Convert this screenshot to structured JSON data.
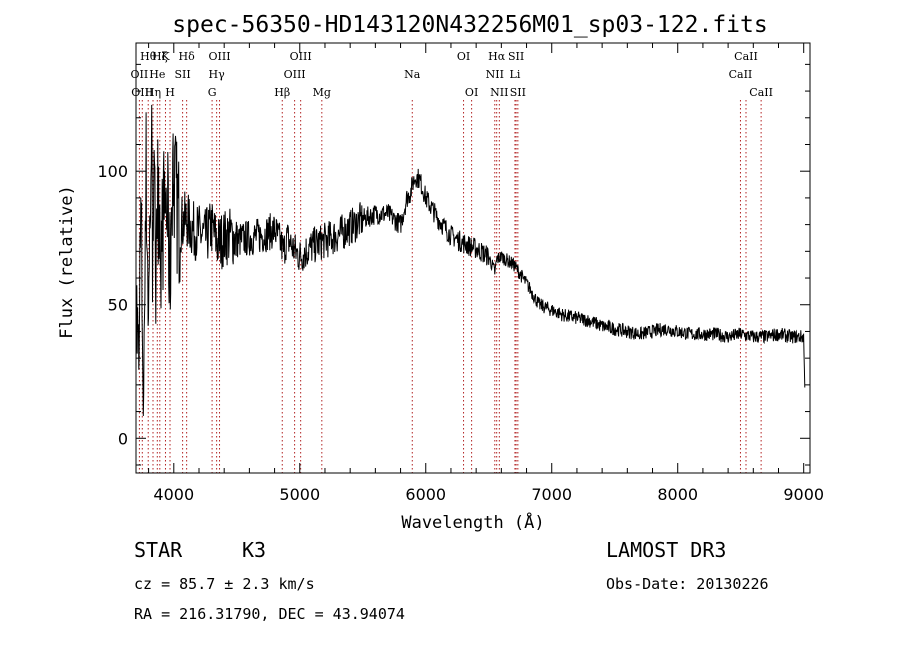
{
  "chart_data": {
    "type": "line",
    "title": "spec-56350-HD143120N432256M01_sp03-122.fits",
    "xlabel": "Wavelength (Å)",
    "ylabel": "Flux (relative)",
    "xlim": [
      3700,
      9050
    ],
    "ylim": [
      -13,
      148
    ],
    "xticks": [
      4000,
      5000,
      6000,
      7000,
      8000,
      9000
    ],
    "yticks": [
      0,
      50,
      100
    ],
    "series": [
      {
        "name": "spectrum",
        "x": [
          3700,
          3720,
          3740,
          3760,
          3780,
          3800,
          3820,
          3850,
          3880,
          3900,
          3930,
          3950,
          3970,
          3990,
          4020,
          4050,
          4100,
          4150,
          4200,
          4250,
          4300,
          4350,
          4400,
          4450,
          4500,
          4600,
          4700,
          4800,
          4850,
          4870,
          4900,
          4950,
          5000,
          5050,
          5100,
          5200,
          5300,
          5400,
          5500,
          5600,
          5700,
          5800,
          5850,
          5880,
          5900,
          5920,
          5950,
          5980,
          6000,
          6050,
          6100,
          6200,
          6300,
          6400,
          6500,
          6550,
          6563,
          6600,
          6700,
          6800,
          6900,
          7000,
          7100,
          7200,
          7300,
          7400,
          7500,
          7600,
          7700,
          7800,
          7900,
          8000,
          8100,
          8200,
          8300,
          8400,
          8500,
          8600,
          8700,
          8800,
          8900,
          9000,
          9010
        ],
        "y": [
          55,
          25,
          85,
          10,
          100,
          45,
          110,
          80,
          95,
          70,
          90,
          85,
          60,
          105,
          88,
          80,
          82,
          78,
          77,
          75,
          79,
          73,
          75,
          76,
          74,
          75,
          76,
          78,
          73,
          70,
          75,
          71,
          68,
          70,
          72,
          74,
          76,
          79,
          82,
          84,
          84,
          80,
          90,
          92,
          96,
          98,
          97,
          93,
          90,
          86,
          82,
          76,
          73,
          71,
          68,
          62,
          67,
          68,
          65,
          58,
          50,
          48,
          46,
          45,
          44,
          42,
          41,
          40,
          39,
          40,
          41,
          40,
          39,
          39,
          39,
          38,
          39,
          38,
          38,
          39,
          38,
          38,
          15
        ]
      }
    ],
    "line_markers": [
      {
        "wl": 3727,
        "label": "OII",
        "row": 1
      },
      {
        "wl": 3750,
        "label": "OIII",
        "row": 2
      },
      {
        "wl": 3797,
        "label": "Hθ",
        "row": 0
      },
      {
        "wl": 3835,
        "label": "Hη",
        "row": 2
      },
      {
        "wl": 3869,
        "label": "He",
        "row": 1
      },
      {
        "wl": 3889,
        "label": "Hζ",
        "row": 0
      },
      {
        "wl": 3934,
        "label": "K",
        "row": 0
      },
      {
        "wl": 3970,
        "label": "H",
        "row": 2
      },
      {
        "wl": 4070,
        "label": "SII",
        "row": 1
      },
      {
        "wl": 4102,
        "label": "Hδ",
        "row": 0
      },
      {
        "wl": 4304,
        "label": "G",
        "row": 2
      },
      {
        "wl": 4340,
        "label": "Hγ",
        "row": 1
      },
      {
        "wl": 4363,
        "label": "OIII",
        "row": 0
      },
      {
        "wl": 4861,
        "label": "Hβ",
        "row": 2
      },
      {
        "wl": 4959,
        "label": "OIII",
        "row": 1
      },
      {
        "wl": 5007,
        "label": "OIII",
        "row": 0
      },
      {
        "wl": 5175,
        "label": "Mg",
        "row": 2
      },
      {
        "wl": 5893,
        "label": "Na",
        "row": 1
      },
      {
        "wl": 6300,
        "label": "OI",
        "row": 0
      },
      {
        "wl": 6364,
        "label": "OI",
        "row": 2
      },
      {
        "wl": 6548,
        "label": "NII",
        "row": 1
      },
      {
        "wl": 6563,
        "label": "Hα",
        "row": 0
      },
      {
        "wl": 6584,
        "label": "NII",
        "row": 2
      },
      {
        "wl": 6708,
        "label": "Li",
        "row": 1
      },
      {
        "wl": 6717,
        "label": "SII",
        "row": 0
      },
      {
        "wl": 6731,
        "label": "SII",
        "row": 2
      },
      {
        "wl": 8498,
        "label": "CaII",
        "row": 1
      },
      {
        "wl": 8542,
        "label": "CaII",
        "row": 0
      },
      {
        "wl": 8662,
        "label": "CaII",
        "row": 2
      }
    ],
    "marker_color": "#b22222"
  },
  "info": {
    "object_class": "STAR",
    "subclass": "K3",
    "cz": "cz = 85.7 ± 2.3 km/s",
    "coords": "RA = 216.31790, DEC =  43.94074",
    "survey": "LAMOST DR3",
    "obs_date": "Obs-Date: 20130226"
  }
}
